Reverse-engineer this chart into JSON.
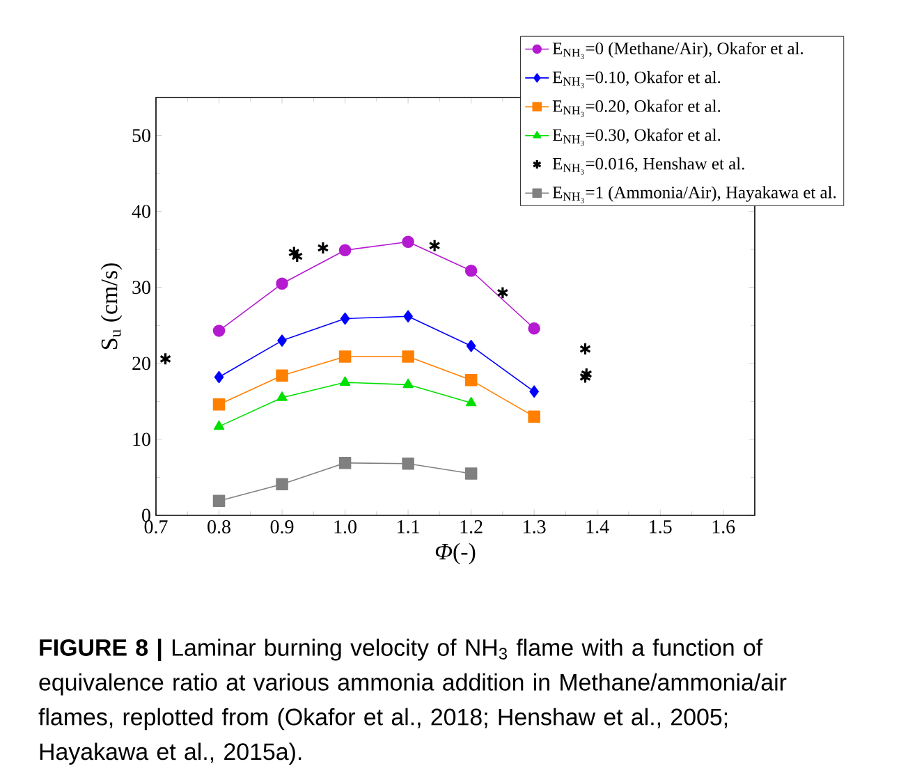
{
  "chart_data": {
    "type": "line",
    "xlabel": "*Φ*(-)",
    "ylabel": "S$_{u}$ (cm/s)",
    "xlim": [
      0.7,
      1.65
    ],
    "ylim": [
      0,
      55
    ],
    "xticks": [
      0.7,
      0.8,
      0.9,
      {
        "value": 1.0,
        "label": "1.0"
      },
      1.1,
      1.2,
      1.3,
      1.4,
      1.5,
      1.6
    ],
    "yticks": [
      0,
      10,
      20,
      30,
      40,
      50
    ],
    "legend": "top right",
    "grid": false,
    "line_style": "solid",
    "series": [
      {
        "name": "E$_{NH₃}$=0 (Methane/Air), Okafor et al.",
        "color": "#b41ad0",
        "marker": "circle",
        "x": [
          0.8,
          0.9,
          1.0,
          1.1,
          1.2,
          1.3
        ],
        "values": [
          24.3,
          30.5,
          34.9,
          36.0,
          32.2,
          24.6
        ]
      },
      {
        "name": "E$_{NH₃}$=0.10, Okafor et al.",
        "color": "#0000ff",
        "marker": "diamond",
        "x": [
          0.8,
          0.9,
          1.0,
          1.1,
          1.2,
          1.3
        ],
        "values": [
          18.2,
          23.0,
          25.9,
          26.2,
          22.3,
          16.3
        ]
      },
      {
        "name": "E$_{NH₃}$=0.20, Okafor et al.",
        "color": "#ff8000",
        "marker": "square",
        "x": [
          0.8,
          0.9,
          1.0,
          1.1,
          1.2,
          1.3
        ],
        "values": [
          14.6,
          18.4,
          20.9,
          20.9,
          17.8,
          13.0
        ]
      },
      {
        "name": "E$_{NH₃}$=0.30, Okafor et al.",
        "color": "#00e000",
        "marker": "triangle",
        "x": [
          0.8,
          0.9,
          1.0,
          1.1,
          1.2
        ],
        "values": [
          11.7,
          15.5,
          17.5,
          17.2,
          14.8
        ]
      },
      {
        "name": "E$_{NH₃}$=0.016, Henshaw et al.",
        "type": "scatter",
        "color": "#000000",
        "marker": "cross",
        "x": [
          0.715,
          0.919,
          0.924,
          0.965,
          1.142,
          1.25,
          1.381,
          1.381,
          1.383
        ],
        "values": [
          20.6,
          34.6,
          34.1,
          35.2,
          35.5,
          29.3,
          21.9,
          18.2,
          18.6
        ]
      },
      {
        "name": "E$_{NH₃}$=1 (Ammonia/Air), Hayakawa et al.",
        "color": "#808080",
        "marker": "square",
        "x": [
          0.8,
          0.9,
          1.0,
          1.1,
          1.2
        ],
        "values": [
          1.9,
          4.1,
          6.9,
          6.8,
          5.5
        ]
      }
    ],
    "annotations": [
      "**FIGURE 8 |** Laminar burning velocity of NH$_{3}$ flame with a function of equivalence ratio at various ammonia addition in Methane/ammonia/air flames, replotted from (Okafor et al., 2018; Henshaw et al., 2005; Hayakawa et al., 2015a)."
    ]
  }
}
